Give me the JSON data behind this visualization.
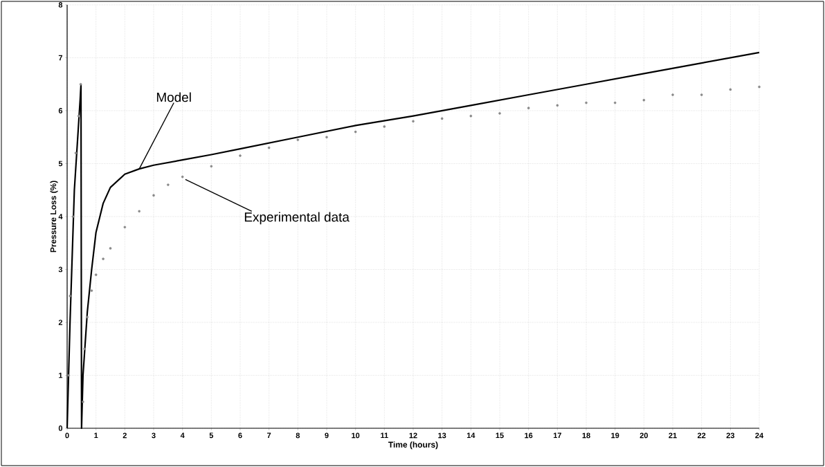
{
  "chart_data": {
    "type": "line",
    "xlabel": "Time (hours)",
    "ylabel": "Pressure Loss (%)",
    "xlim": [
      0,
      24
    ],
    "xticks": [
      0,
      1,
      2,
      3,
      4,
      5,
      6,
      7,
      8,
      9,
      10,
      11,
      12,
      13,
      14,
      15,
      16,
      17,
      18,
      19,
      20,
      21,
      22,
      23,
      24
    ],
    "ylim": [
      0,
      8
    ],
    "yticks": [
      0,
      1,
      2,
      3,
      4,
      5,
      6,
      7,
      8
    ],
    "grid": true,
    "annotations": [
      {
        "text": "Model",
        "x": 2.5,
        "y": 4.9
      },
      {
        "text": "Experimental data",
        "x": 4.1,
        "y": 4.7
      }
    ],
    "series": [
      {
        "color": "#000000",
        "marker": "none",
        "x": [
          0,
          0.1,
          0.25,
          0.45,
          0.48,
          0.5,
          0.55,
          0.7,
          0.85,
          1,
          1.25,
          1.5,
          2,
          2.5,
          3,
          4,
          5,
          6,
          8,
          10,
          12,
          14,
          16,
          18,
          20,
          22,
          24
        ],
        "values": [
          0,
          2,
          4.5,
          6.2,
          6.5,
          0,
          1.0,
          2.2,
          3.0,
          3.7,
          4.25,
          4.55,
          4.8,
          4.9,
          4.97,
          5.07,
          5.17,
          5.28,
          5.5,
          5.72,
          5.9,
          6.1,
          6.3,
          6.5,
          6.7,
          6.9,
          7.1
        ]
      },
      {
        "type": "scatter",
        "color": "#888888",
        "marker": "circle",
        "x": [
          0.05,
          0.1,
          0.2,
          0.3,
          0.4,
          0.47,
          0.55,
          0.6,
          0.7,
          0.85,
          1,
          1.25,
          1.5,
          2,
          2.5,
          3,
          3.5,
          4,
          5,
          6,
          7,
          8,
          9,
          10,
          11,
          12,
          13,
          14,
          15,
          16,
          17,
          18,
          19,
          20,
          21,
          22,
          23,
          24
        ],
        "values": [
          1,
          2.5,
          4,
          5.2,
          5.9,
          6.5,
          0.5,
          1.5,
          2.1,
          2.6,
          2.9,
          3.2,
          3.4,
          3.8,
          4.1,
          4.4,
          4.6,
          4.75,
          4.95,
          5.15,
          5.3,
          5.45,
          5.5,
          5.6,
          5.7,
          5.8,
          5.85,
          5.9,
          5.95,
          6.05,
          6.1,
          6.15,
          6.15,
          6.2,
          6.3,
          6.3,
          6.4,
          6.45
        ]
      }
    ]
  }
}
